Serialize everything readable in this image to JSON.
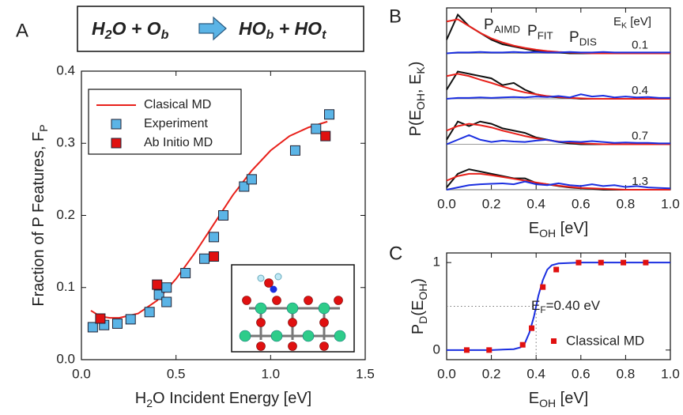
{
  "chart_data": [
    {
      "type": "scatter",
      "panel_label": "A",
      "reaction": {
        "left": [
          "H",
          "2",
          "O + O",
          "b"
        ],
        "right": [
          "HO",
          "b",
          " + HO",
          "t"
        ]
      },
      "xlabel": [
        "H",
        "2",
        "O Incident Energy  [eV]"
      ],
      "ylabel": [
        "Fraction of P Features, F",
        "P"
      ],
      "xlim": [
        0,
        1.5
      ],
      "ylim": [
        0,
        0.4
      ],
      "xticks": [
        {
          "value": 0,
          "label": "0.0"
        },
        0.5,
        {
          "value": 1,
          "label": "1.0"
        },
        1.5
      ],
      "yticks": [
        {
          "value": 0,
          "label": "0.0"
        },
        0.1,
        0.2,
        0.3,
        0.4
      ],
      "legend": "upper left",
      "series": [
        {
          "name": "Clasical MD",
          "color": "#e8201a",
          "style": "line",
          "x": [
            0.05,
            0.1,
            0.15,
            0.2,
            0.3,
            0.4,
            0.5,
            0.6,
            0.7,
            0.8,
            0.9,
            1.0,
            1.1,
            1.2,
            1.3
          ],
          "values": [
            0.068,
            0.06,
            0.058,
            0.058,
            0.064,
            0.082,
            0.112,
            0.148,
            0.188,
            0.228,
            0.262,
            0.29,
            0.31,
            0.322,
            0.33
          ]
        },
        {
          "name": "Experiment",
          "color": "#5bb4e6",
          "style": "square",
          "x": [
            0.06,
            0.12,
            0.19,
            0.26,
            0.36,
            0.41,
            0.45,
            0.45,
            0.55,
            0.65,
            0.7,
            0.75,
            0.86,
            0.9,
            1.13,
            1.24,
            1.31
          ],
          "values": [
            0.045,
            0.048,
            0.05,
            0.056,
            0.066,
            0.09,
            0.1,
            0.08,
            0.12,
            0.14,
            0.17,
            0.2,
            0.24,
            0.25,
            0.29,
            0.32,
            0.34
          ]
        },
        {
          "name": "Ab Initio MD",
          "color": "#e01010",
          "style": "square",
          "x": [
            0.1,
            0.4,
            0.7,
            1.29
          ],
          "values": [
            0.057,
            0.104,
            0.143,
            0.31
          ]
        }
      ]
    },
    {
      "type": "line",
      "panel_label": "B",
      "xlabel": [
        "E",
        "OH",
        " [eV]"
      ],
      "ylabel": [
        "P(E",
        "OH",
        ", E",
        "K",
        ")"
      ],
      "xlim": [
        0,
        1
      ],
      "ylim": [
        0,
        1
      ],
      "xticks": [
        {
          "value": 0,
          "label": "0.0"
        },
        0.2,
        0.4,
        0.6,
        0.8,
        {
          "value": 1,
          "label": "1.0"
        }
      ],
      "panel_title": [
        "E",
        "K",
        " [eV]"
      ],
      "panels": [
        "0.1",
        "0.4",
        "0.7",
        "1.3"
      ],
      "x": [
        0,
        0.05,
        0.1,
        0.15,
        0.2,
        0.25,
        0.3,
        0.35,
        0.4,
        0.45,
        0.5,
        0.55,
        0.6,
        0.65,
        0.7,
        0.75,
        0.8,
        0.85,
        0.9,
        0.95,
        1.0
      ],
      "series": [
        {
          "name": [
            "P",
            "AIMD"
          ],
          "color": "#111111",
          "values": [
            [
              0.3,
              0.85,
              0.6,
              0.45,
              0.3,
              0.2,
              0.15,
              0.1,
              0.05,
              0.03,
              0.02,
              0,
              0,
              0,
              0,
              0,
              0,
              0,
              0,
              0,
              0
            ],
            [
              0.2,
              0.6,
              0.55,
              0.5,
              0.45,
              0.3,
              0.35,
              0.2,
              0.1,
              0.05,
              0.03,
              0.02,
              0,
              0,
              0,
              0,
              0,
              0,
              0,
              0,
              0
            ],
            [
              0.1,
              0.5,
              0.4,
              0.5,
              0.45,
              0.35,
              0.3,
              0.25,
              0.15,
              0.1,
              0.05,
              0.02,
              0,
              0,
              0,
              0,
              0,
              0,
              0,
              0,
              0
            ],
            [
              0.05,
              0.35,
              0.45,
              0.4,
              0.35,
              0.3,
              0.25,
              0.25,
              0.15,
              0.12,
              0.08,
              0.05,
              0.03,
              0.02,
              0,
              0,
              0,
              0,
              0,
              0,
              0
            ]
          ]
        },
        {
          "name": [
            "P",
            "FIT"
          ],
          "color": "#e8201a",
          "values": [
            [
              0.7,
              0.75,
              0.6,
              0.45,
              0.33,
              0.24,
              0.17,
              0.12,
              0.08,
              0.05,
              0.03,
              0.02,
              0.01,
              0,
              0,
              0,
              0,
              0,
              0,
              0,
              0
            ],
            [
              0.5,
              0.55,
              0.5,
              0.42,
              0.35,
              0.27,
              0.2,
              0.14,
              0.1,
              0.06,
              0.04,
              0.02,
              0.01,
              0,
              0,
              0,
              0,
              0,
              0,
              0,
              0
            ],
            [
              0.3,
              0.4,
              0.45,
              0.42,
              0.37,
              0.3,
              0.24,
              0.18,
              0.13,
              0.09,
              0.06,
              0.04,
              0.02,
              0.01,
              0,
              0,
              0,
              0,
              0,
              0,
              0
            ],
            [
              0.2,
              0.3,
              0.35,
              0.35,
              0.32,
              0.28,
              0.24,
              0.2,
              0.16,
              0.12,
              0.09,
              0.06,
              0.04,
              0.03,
              0.02,
              0.01,
              0,
              0,
              0,
              0,
              0
            ]
          ]
        },
        {
          "name": [
            "P",
            "DIS"
          ],
          "color": "#1a2ee0",
          "values": [
            [
              0,
              0.02,
              0.02,
              0.03,
              0.02,
              0.02,
              0.03,
              0.02,
              0.03,
              0.02,
              0.02,
              0.03,
              0.02,
              0.02,
              0.03,
              0.02,
              0.02,
              0.02,
              0.02,
              0.02,
              0.02
            ],
            [
              0,
              0.02,
              0.02,
              0.03,
              0.02,
              0.03,
              0.04,
              0.03,
              0.05,
              0.04,
              0.06,
              0.03,
              0.1,
              0.05,
              0.07,
              0.03,
              0.05,
              0.03,
              0.04,
              0.02,
              0.02
            ],
            [
              0,
              0.1,
              0.2,
              0.1,
              0.05,
              0.08,
              0.06,
              0.05,
              0.08,
              0.1,
              0.05,
              0.06,
              0.05,
              0.07,
              0.05,
              0.03,
              0.04,
              0.03,
              0.03,
              0.02,
              0.02
            ],
            [
              0,
              0.05,
              0.1,
              0.12,
              0.13,
              0.14,
              0.12,
              0.18,
              0.12,
              0.1,
              0.14,
              0.1,
              0.08,
              0.12,
              0.08,
              0.1,
              0.06,
              0.08,
              0.05,
              0.04,
              0.03
            ]
          ]
        }
      ]
    },
    {
      "type": "scatter",
      "panel_label": "C",
      "xlabel": [
        "E",
        "OH",
        " [eV]"
      ],
      "ylabel": [
        "P",
        "D",
        "(E",
        "OH",
        ")"
      ],
      "xlim": [
        0,
        1
      ],
      "ylim": [
        -0.11,
        1.11
      ],
      "xticks": [
        {
          "value": 0,
          "label": "0.0"
        },
        0.2,
        0.4,
        0.6,
        0.8,
        {
          "value": 1,
          "label": "1.0"
        }
      ],
      "yticks": [
        0,
        1
      ],
      "annotation": [
        "E",
        "F",
        "=0.40 eV"
      ],
      "guide": {
        "x": 0.4,
        "y": 0.5
      },
      "series": [
        {
          "color": "#1a2ee0",
          "style": "line",
          "x": [
            0,
            0.1,
            0.2,
            0.3,
            0.33,
            0.35,
            0.37,
            0.39,
            0.4,
            0.41,
            0.43,
            0.45,
            0.47,
            0.5,
            0.6,
            0.8,
            1.0
          ],
          "values": [
            0,
            0,
            0,
            0.01,
            0.03,
            0.08,
            0.2,
            0.38,
            0.5,
            0.62,
            0.8,
            0.92,
            0.97,
            0.99,
            1,
            1,
            1
          ]
        },
        {
          "name": "Classical MD",
          "color": "#e01010",
          "style": "dot",
          "x": [
            0.09,
            0.19,
            0.34,
            0.38,
            0.43,
            0.49,
            0.59,
            0.69,
            0.79,
            0.89
          ],
          "values": [
            0,
            0,
            0.06,
            0.25,
            0.72,
            0.92,
            1,
            1,
            1,
            1
          ]
        }
      ]
    }
  ]
}
